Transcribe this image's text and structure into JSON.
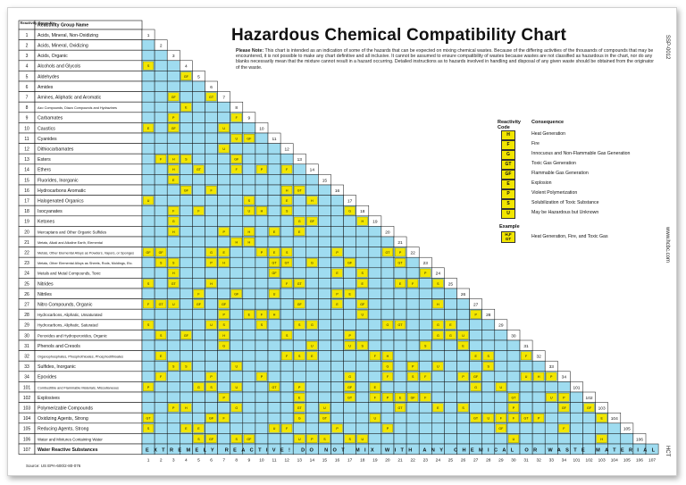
{
  "title": "Hazardous Chemical Compatibility Chart",
  "doc_code_top": "SSP-0012",
  "doc_code_bottom": "HCT",
  "website": "www.hcbc.com",
  "source": "Source: US EPA-600/2-80-076",
  "please_note_label": "Please Note:",
  "please_note_text": "This chart is intended as an indication of some of the hazards that can be expected on mixing chemical wastes. Because of the differing activities of the thousands of compounds that may be encountered, it is not possible to make any chart definitive and all inclusive. It cannot be assumed to ensure compatibility of wastes because wastes are not classified as hazardous in the chart, nor do any blanks necessarily mean that the mixture cannot result in a hazard occurring. Detailed instructions as to hazards involved in handling and disposal of any given waste should be obtained from the originator of the waste.",
  "header": {
    "col1": "Reactivity Group No.",
    "col2": "Reactivity Group Name"
  },
  "groups": [
    {
      "no": "1",
      "name": "Acids, Mineral, Non-Oxidizing"
    },
    {
      "no": "2",
      "name": "Acids, Mineral, Oxidizing"
    },
    {
      "no": "3",
      "name": "Acids, Organic"
    },
    {
      "no": "4",
      "name": "Alcohols and Glycols"
    },
    {
      "no": "5",
      "name": "Aldehydes"
    },
    {
      "no": "6",
      "name": "Amides"
    },
    {
      "no": "7",
      "name": "Amines, Aliphatic and Aromatic"
    },
    {
      "no": "8",
      "name": "Azo Compounds, Diazo Compounds and Hydrazines"
    },
    {
      "no": "9",
      "name": "Carbamates"
    },
    {
      "no": "10",
      "name": "Caustics"
    },
    {
      "no": "11",
      "name": "Cyanides"
    },
    {
      "no": "12",
      "name": "Dithiocarbamates"
    },
    {
      "no": "13",
      "name": "Esters"
    },
    {
      "no": "14",
      "name": "Ethers"
    },
    {
      "no": "15",
      "name": "Fluorides, Inorganic"
    },
    {
      "no": "16",
      "name": "Hydrocarbons Aromatic"
    },
    {
      "no": "17",
      "name": "Halogenated Organics"
    },
    {
      "no": "18",
      "name": "Isocyanates"
    },
    {
      "no": "19",
      "name": "Ketones"
    },
    {
      "no": "20",
      "name": "Mercaptans and Other Organic Sulfides"
    },
    {
      "no": "21",
      "name": "Metals, Alkali and Alkaline Earth, Elemental"
    },
    {
      "no": "22",
      "name": "Metals, Other Elemental Alloys as Powders, Vapors, or Sponges"
    },
    {
      "no": "23",
      "name": "Metals, Other Elemental Alloys as Sheets, Rods, Moldings, Etc."
    },
    {
      "no": "24",
      "name": "Metals and Metal Compounds, Toxic"
    },
    {
      "no": "25",
      "name": "Nitrides"
    },
    {
      "no": "26",
      "name": "Nitriles"
    },
    {
      "no": "27",
      "name": "Nitro Compounds, Organic"
    },
    {
      "no": "28",
      "name": "Hydrocarbons, Aliphatic, Unsaturated"
    },
    {
      "no": "29",
      "name": "Hydrocarbons, Aliphatic, Saturated"
    },
    {
      "no": "30",
      "name": "Peroxides and Hydroperoxides, Organic"
    },
    {
      "no": "31",
      "name": "Phenols and Cresols"
    },
    {
      "no": "32",
      "name": "Organophosphates, Phosphothioates, Phosphodithioates"
    },
    {
      "no": "33",
      "name": "Sulfides, Inorganic"
    },
    {
      "no": "34",
      "name": "Epoxides"
    },
    {
      "no": "101",
      "name": "Combustible and Flammable Materials, Miscellaneous"
    },
    {
      "no": "102",
      "name": "Explosives"
    },
    {
      "no": "103",
      "name": "Polymerizable Compounds"
    },
    {
      "no": "104",
      "name": "Oxidizing Agents, Strong"
    },
    {
      "no": "105",
      "name": "Reducing Agents, Strong"
    },
    {
      "no": "106",
      "name": "Water and Mixtures Containing Water"
    },
    {
      "no": "107",
      "name": "Water Reactive Substances"
    }
  ],
  "bottom_banner": "EXTREMELY REACTIVE! DO NOT MIX WITH ANY CHEMICAL OR WASTE MATERIAL",
  "legend": {
    "header_code": "Reactivity Code",
    "header_consequence": "Consequence",
    "items": [
      {
        "code": "H",
        "consequence": "Heat Generation"
      },
      {
        "code": "F",
        "consequence": "Fire"
      },
      {
        "code": "G",
        "consequence": "Innocuous and Non-Flammable Gas Generation"
      },
      {
        "code": "GT",
        "consequence": "Toxic Gas Generation"
      },
      {
        "code": "GF",
        "consequence": "Flammable Gas Generation"
      },
      {
        "code": "E",
        "consequence": "Explosion"
      },
      {
        "code": "P",
        "consequence": "Violent Polymerization"
      },
      {
        "code": "S",
        "consequence": "Solubilization of Toxic Substance"
      },
      {
        "code": "U",
        "consequence": "May be Hazardous but Unknown"
      }
    ],
    "example_label": "Example",
    "example_code": "H,F GT",
    "example_consequence": "Heat Generation, Fire, and Toxic Gas"
  },
  "colors": {
    "cell_blue": "#9fdcf0",
    "cell_yellow": "#f2e600",
    "grid": "#111111"
  }
}
